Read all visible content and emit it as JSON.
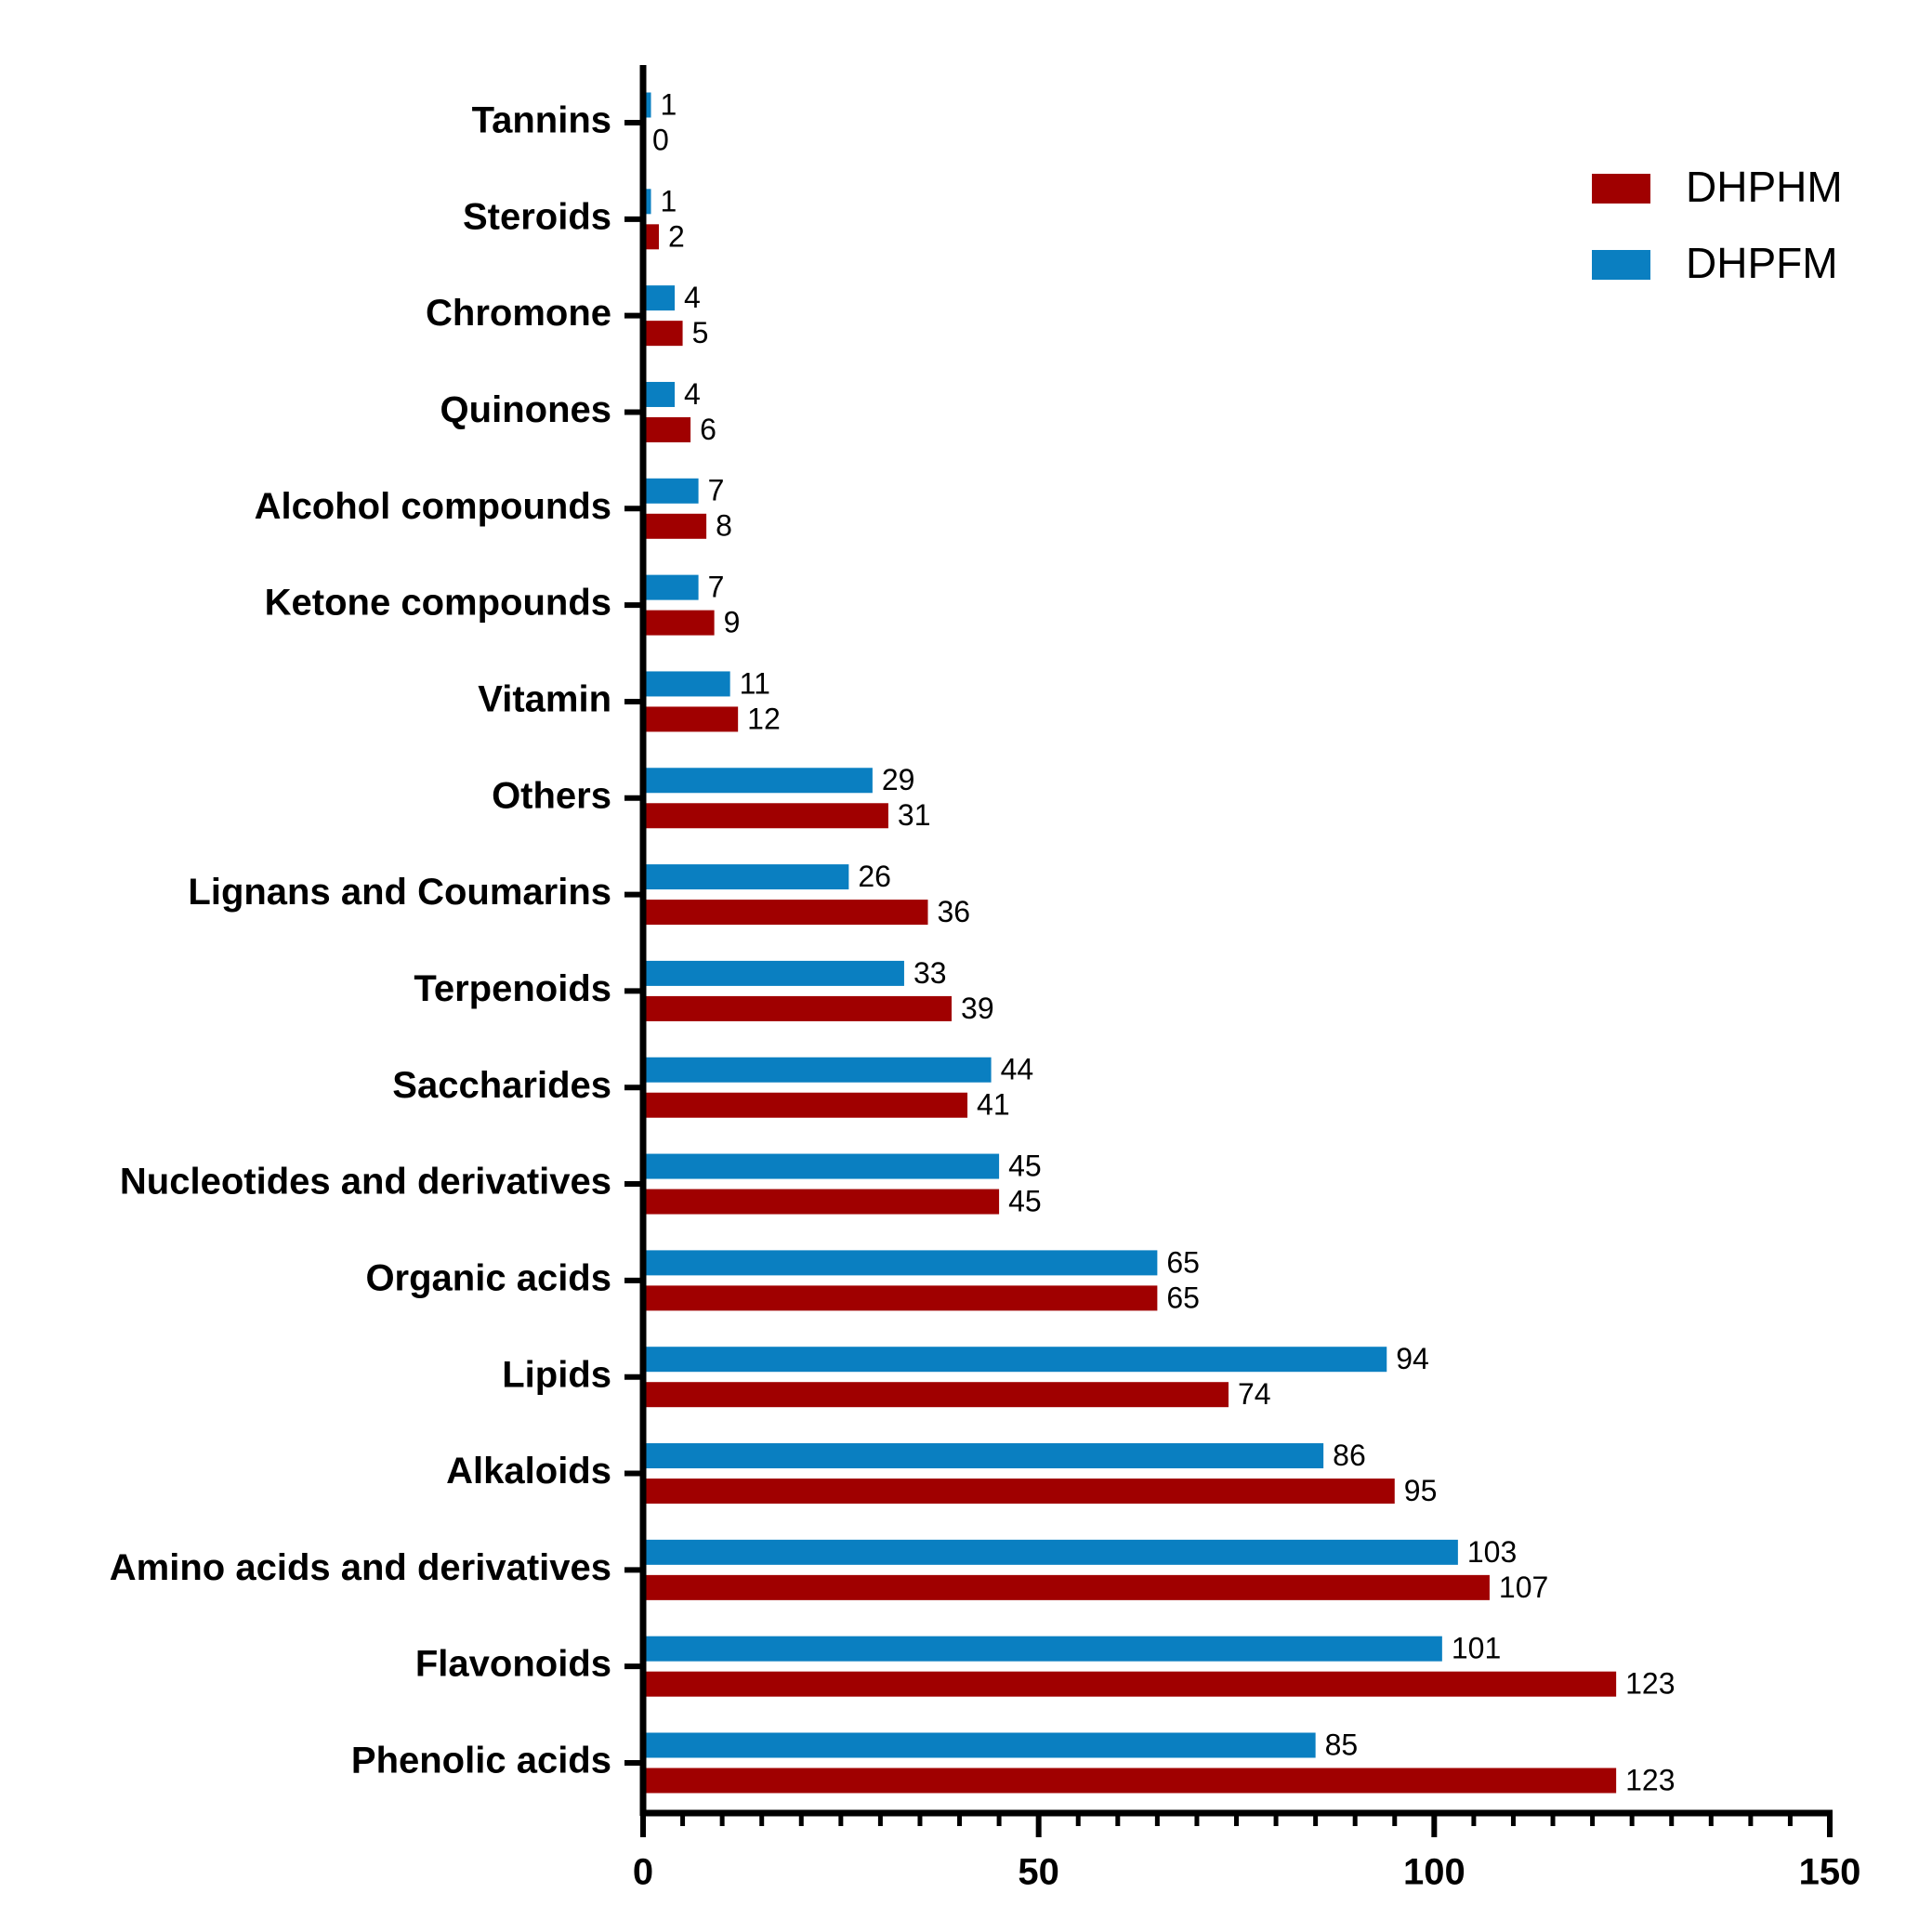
{
  "chart_data": {
    "type": "hbar",
    "categories": [
      "Tannins",
      "Steroids",
      "Chromone",
      "Quinones",
      "Alcohol compounds",
      "Ketone compounds",
      "Vitamin",
      "Others",
      "Lignans and Coumarins",
      "Terpenoids",
      "Saccharides",
      "Nucleotides and derivatives",
      "Organic acids",
      "Lipids",
      "Alkaloids",
      "Amino acids and derivatives",
      "Flavonoids",
      "Phenolic acids"
    ],
    "series": [
      {
        "name": "DHPHM",
        "color": "#a00000",
        "values": [
          0,
          2,
          5,
          6,
          8,
          9,
          12,
          31,
          36,
          39,
          41,
          45,
          65,
          74,
          95,
          107,
          123,
          123
        ]
      },
      {
        "name": "DHPFM",
        "color": "#0a7fc1",
        "values": [
          1,
          1,
          4,
          4,
          7,
          7,
          11,
          29,
          26,
          33,
          44,
          45,
          65,
          94,
          86,
          103,
          101,
          85
        ]
      }
    ],
    "xlim": [
      0,
      150
    ],
    "xticks": [
      0,
      50,
      100,
      150
    ],
    "legend": "top-right"
  }
}
